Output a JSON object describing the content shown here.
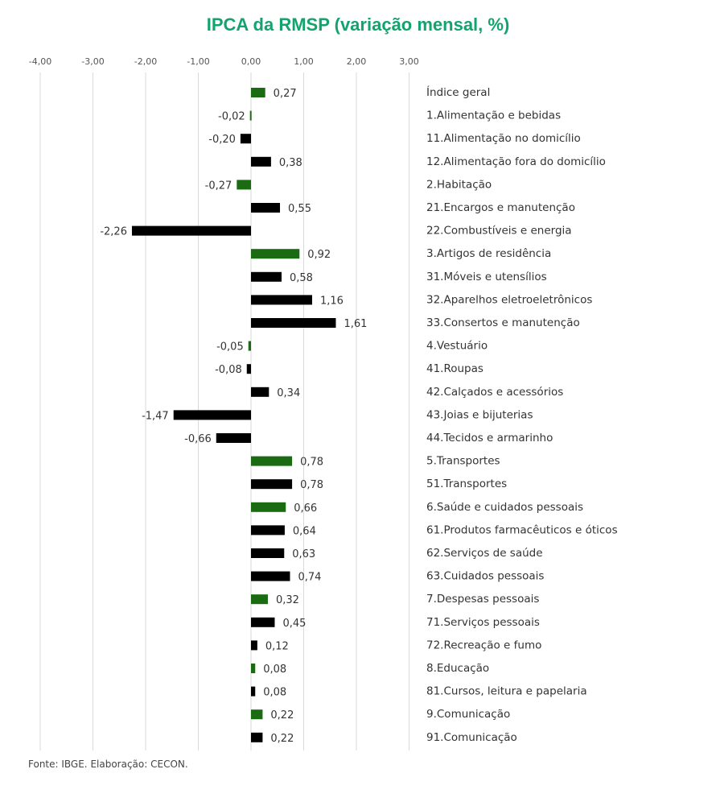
{
  "chart_data": {
    "type": "bar",
    "orientation": "horizontal",
    "title": "IPCA da RMSP (variação mensal, %)",
    "xlim": [
      -4,
      3
    ],
    "x_ticks": [
      "-4,00",
      "-3,00",
      "-2,00",
      "-1,00",
      "0,00",
      "1,00",
      "2,00",
      "3,00"
    ],
    "x_tick_values": [
      -4,
      -3,
      -2,
      -1,
      0,
      1,
      2,
      3
    ],
    "x_axis_position": "top",
    "grid": "vertical",
    "colors": {
      "group": "#1a6b12",
      "subitem": "#000000"
    },
    "categories": [
      "Índice geral",
      "1.Alimentação e bebidas",
      "11.Alimentação no domicílio",
      "12.Alimentação fora do domicílio",
      "2.Habitação",
      "21.Encargos e manutenção",
      "22.Combustíveis e energia",
      "3.Artigos de residência",
      "31.Móveis e utensílios",
      "32.Aparelhos eletroeletrônicos",
      "33.Consertos e manutenção",
      "4.Vestuário",
      "41.Roupas",
      "42.Calçados e acessórios",
      "43.Joias e bijuterias",
      "44.Tecidos e armarinho",
      "5.Transportes",
      "51.Transportes",
      "6.Saúde e cuidados pessoais",
      "61.Produtos farmacêuticos e óticos",
      "62.Serviços de saúde",
      "63.Cuidados pessoais",
      "7.Despesas pessoais",
      "71.Serviços pessoais",
      "72.Recreação e fumo",
      "8.Educação",
      "81.Cursos, leitura e papelaria",
      "9.Comunicação",
      "91.Comunicação"
    ],
    "values": [
      0.27,
      -0.02,
      -0.2,
      0.38,
      -0.27,
      0.55,
      -2.26,
      0.92,
      0.58,
      1.16,
      1.61,
      -0.05,
      -0.08,
      0.34,
      -1.47,
      -0.66,
      0.78,
      0.78,
      0.66,
      0.64,
      0.63,
      0.74,
      0.32,
      0.45,
      0.12,
      0.08,
      0.08,
      0.22,
      0.22
    ],
    "labels": [
      "0,27",
      "-0,02",
      "-0,20",
      "0,38",
      "-0,27",
      "0,55",
      "-2,26",
      "0,92",
      "0,58",
      "1,16",
      "1,61",
      "-0,05",
      "-0,08",
      "0,34",
      "-1,47",
      "-0,66",
      "0,78",
      "0,78",
      "0,66",
      "0,64",
      "0,63",
      "0,74",
      "0,32",
      "0,45",
      "0,12",
      "0,08",
      "0,08",
      "0,22",
      "0,22"
    ],
    "is_group": [
      true,
      true,
      false,
      false,
      true,
      false,
      false,
      true,
      false,
      false,
      false,
      true,
      false,
      false,
      false,
      false,
      true,
      false,
      true,
      false,
      false,
      false,
      true,
      false,
      false,
      true,
      false,
      true,
      false
    ]
  },
  "footer": "Fonte: IBGE. Elaboração: CECON."
}
